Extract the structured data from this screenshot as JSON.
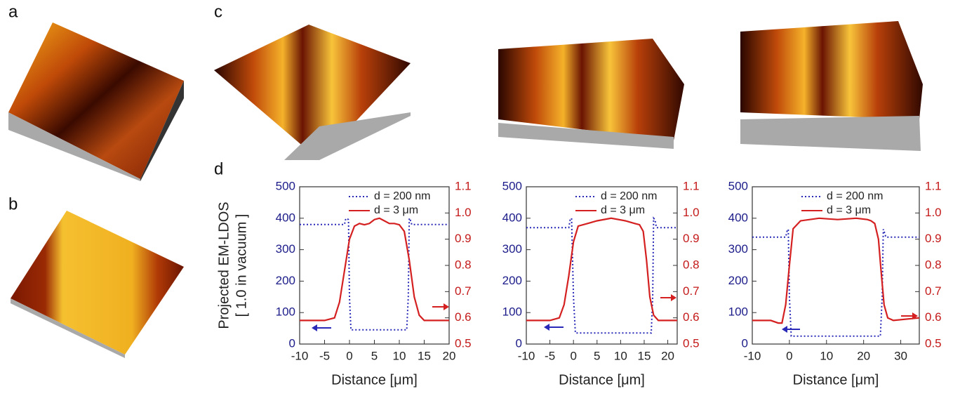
{
  "panel_labels": [
    "a",
    "b",
    "c",
    "d"
  ],
  "chart_data": [
    {
      "type": "line",
      "ylabel": "Projected EM-LDOS",
      "ylabel_sub": "[ 1.0 in vacuum ]",
      "xlabel": "Distance [μm]",
      "xlim": [
        -10,
        20
      ],
      "xticks": [
        -10,
        -5,
        0,
        5,
        10,
        15,
        20
      ],
      "ylim": [
        0,
        500
      ],
      "yticks": [
        0,
        100,
        200,
        300,
        400,
        500
      ],
      "y2lim": [
        0.5,
        1.1
      ],
      "y2ticks": [
        0.5,
        0.6,
        0.7,
        0.8,
        0.9,
        {
          "value": 1,
          "label": "1.0"
        },
        1.1
      ],
      "series": [
        {
          "name": "d = 200 nm",
          "color": "#2a2ab8",
          "style": "dotted",
          "x": [
            -10,
            -1,
            -0.8,
            -0.5,
            -0.2,
            0,
            0.3,
            11.5,
            11.8,
            12,
            12.2,
            12.5,
            20
          ],
          "values": [
            380,
            380,
            395,
            400,
            395,
            150,
            45,
            45,
            150,
            400,
            395,
            380,
            380
          ]
        },
        {
          "name": "d = 3 μm",
          "color": "#d42020",
          "style": "solid",
          "axis": "y2",
          "x": [
            -10,
            -5,
            -3,
            -2,
            -1,
            0,
            1,
            2,
            3,
            4,
            5,
            6,
            7,
            8,
            9,
            10,
            11,
            12,
            13,
            14,
            15,
            16,
            20
          ],
          "values": [
            0.59,
            0.59,
            0.6,
            0.66,
            0.78,
            0.9,
            0.95,
            0.96,
            0.955,
            0.96,
            0.975,
            0.98,
            0.97,
            0.96,
            0.96,
            0.955,
            0.93,
            0.82,
            0.68,
            0.61,
            0.59,
            0.59,
            0.59
          ]
        }
      ]
    },
    {
      "type": "line",
      "xlabel": "Distance [μm]",
      "xlim": [
        -10,
        22
      ],
      "xticks": [
        -10,
        -5,
        0,
        5,
        10,
        15,
        20
      ],
      "ylim": [
        0,
        500
      ],
      "yticks": [
        0,
        100,
        200,
        300,
        400,
        500
      ],
      "y2lim": [
        0.5,
        1.1
      ],
      "y2ticks": [
        0.5,
        0.6,
        0.7,
        0.8,
        0.9,
        {
          "value": 1,
          "label": "1.0"
        },
        1.1
      ],
      "series": [
        {
          "name": "d = 200 nm",
          "color": "#2a2ab8",
          "style": "dotted",
          "x": [
            -10,
            -1,
            -0.7,
            -0.4,
            0,
            0.4,
            16.5,
            16.8,
            17,
            17.3,
            17.6,
            22
          ],
          "values": [
            370,
            370,
            395,
            400,
            150,
            35,
            35,
            150,
            400,
            395,
            370,
            370
          ]
        },
        {
          "name": "d = 3 μm",
          "color": "#d42020",
          "style": "solid",
          "axis": "y2",
          "x": [
            -10,
            -5,
            -3,
            -2,
            -1,
            0,
            1,
            3,
            5,
            8,
            11,
            13,
            14,
            14.8,
            15.5,
            16.2,
            17,
            18,
            22
          ],
          "values": [
            0.59,
            0.59,
            0.6,
            0.65,
            0.76,
            0.89,
            0.95,
            0.96,
            0.97,
            0.98,
            0.97,
            0.96,
            0.955,
            0.93,
            0.82,
            0.68,
            0.61,
            0.59,
            0.59
          ]
        }
      ]
    },
    {
      "type": "line",
      "xlabel": "Distance [μm]",
      "xlim": [
        -10,
        35
      ],
      "xticks": [
        -10,
        0,
        10,
        20,
        30
      ],
      "ylim": [
        0,
        500
      ],
      "yticks": [
        0,
        100,
        200,
        300,
        400,
        500
      ],
      "y2lim": [
        0.5,
        1.1
      ],
      "y2ticks": [
        0.5,
        0.6,
        0.7,
        0.8,
        0.9,
        {
          "value": 1,
          "label": "1.0"
        },
        1.1
      ],
      "series": [
        {
          "name": "d = 200 nm",
          "color": "#2a2ab8",
          "style": "dotted",
          "x": [
            -10,
            -1,
            -0.6,
            -0.3,
            0,
            0.5,
            24.5,
            25,
            25.3,
            25.6,
            26,
            35
          ],
          "values": [
            340,
            340,
            360,
            365,
            150,
            25,
            25,
            150,
            365,
            355,
            340,
            340
          ]
        },
        {
          "name": "d = 3 μm",
          "color": "#d42020",
          "style": "solid",
          "axis": "y2",
          "x": [
            -10,
            -5,
            -3,
            -2,
            -1,
            0,
            1,
            3,
            8,
            13,
            18,
            21,
            22,
            23,
            24,
            24.7,
            25.5,
            26.5,
            28,
            35
          ],
          "values": [
            0.59,
            0.59,
            0.58,
            0.58,
            0.65,
            0.8,
            0.94,
            0.97,
            0.98,
            0.975,
            0.98,
            0.975,
            0.97,
            0.96,
            0.9,
            0.78,
            0.65,
            0.6,
            0.59,
            0.6
          ]
        }
      ]
    }
  ]
}
